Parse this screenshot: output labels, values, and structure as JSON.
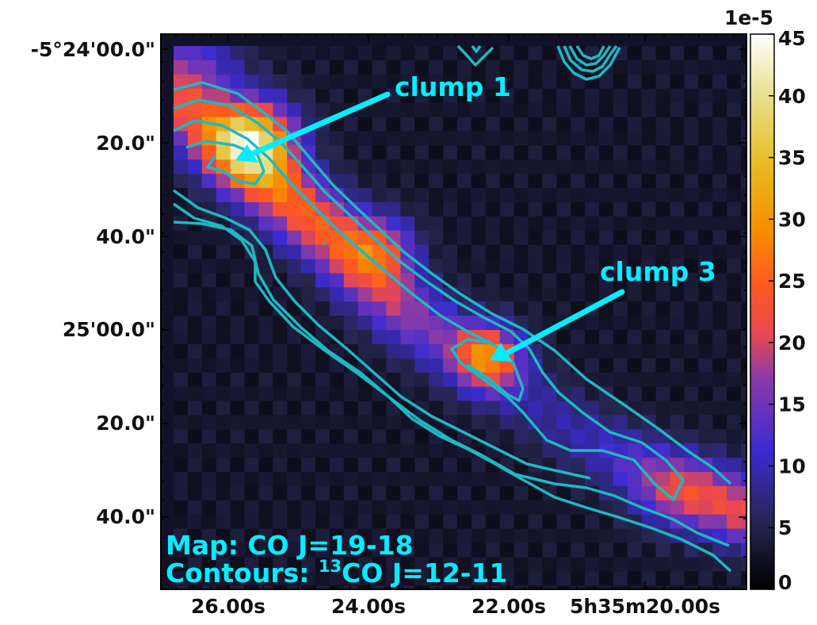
{
  "chart_data": {
    "type": "heatmap",
    "title": "",
    "xlabel": "",
    "ylabel": "",
    "x_ticks": [
      "26.00s",
      "24.00s",
      "22.00s",
      "5h35m20.00s"
    ],
    "y_ticks": [
      "-5°24'00.0\"",
      "20.0\"",
      "40.0\"",
      "25'00.0\"",
      "20.0\"",
      "40.0\""
    ],
    "colorbar": {
      "scale_label": "1e-5",
      "range": [
        0,
        45
      ],
      "ticks": [
        "0",
        "5",
        "10",
        "15",
        "20",
        "25",
        "30",
        "35",
        "40",
        "45"
      ],
      "colormap": "CMRmap"
    },
    "map_label": "Map: CO J=19-18",
    "contours_label_prefix": "Contours: ",
    "contours_label_sup": "13",
    "contours_label_suffix": "CO J=12-11",
    "contour_color": "#20b8c0",
    "annotation_color": "#00f0ff",
    "annotations": [
      {
        "text": "clump 1"
      },
      {
        "text": "clump 3"
      }
    ],
    "emission_ridge": {
      "orientation": "diagonal, from upper-left to lower-right",
      "peak_value": 45,
      "background_value": 3
    }
  }
}
